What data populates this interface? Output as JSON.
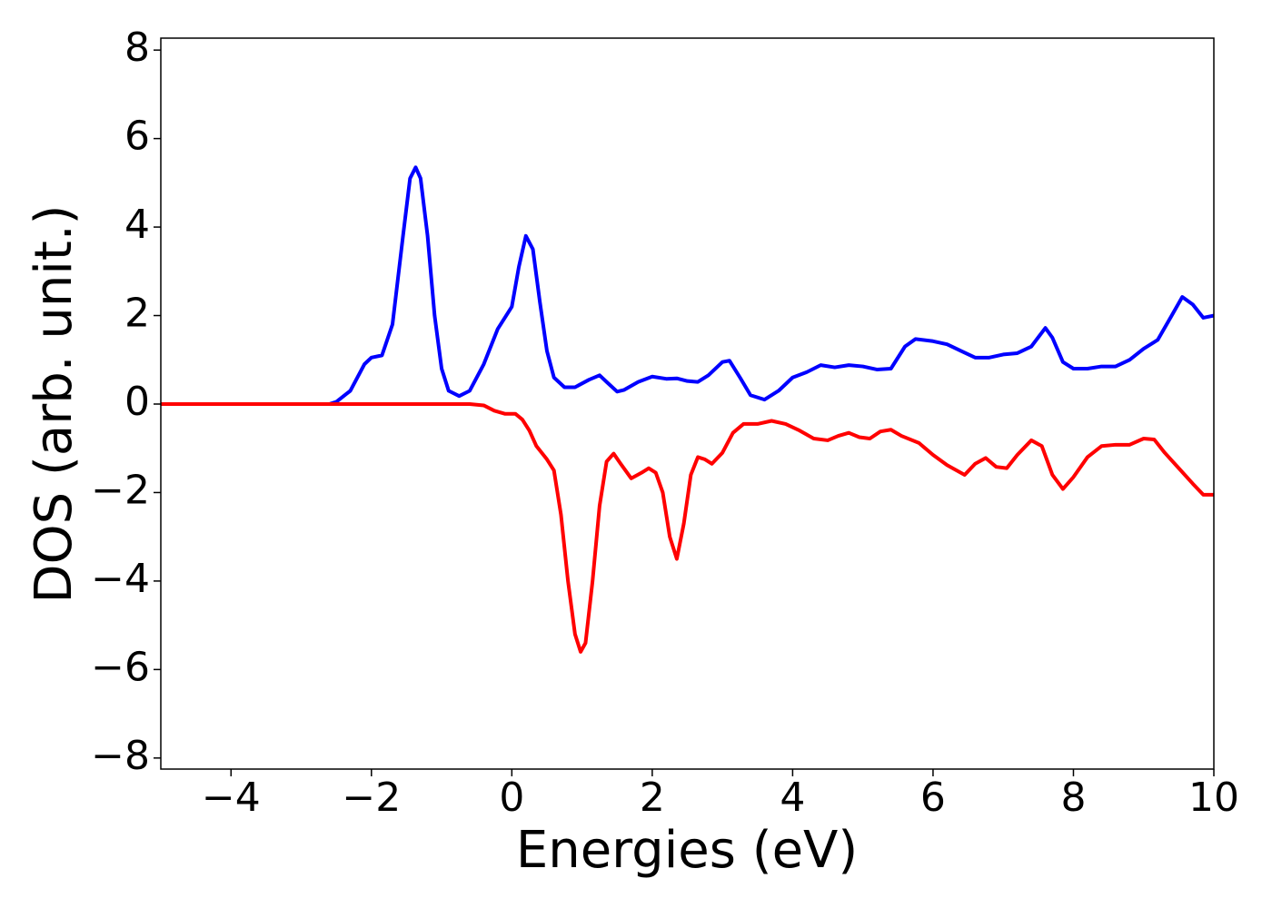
{
  "chart_data": {
    "type": "line",
    "xlabel": "Energies (eV)",
    "ylabel": "DOS (arb. unit.)",
    "xlim": [
      -5,
      10
    ],
    "ylim": [
      -8.25,
      8.27
    ],
    "xticks": [
      {
        "value": -4,
        "label": "−4"
      },
      {
        "value": -2,
        "label": "−2"
      },
      0,
      2,
      4,
      6,
      8,
      10
    ],
    "yticks": [
      {
        "value": -8,
        "label": "−8"
      },
      {
        "value": -6,
        "label": "−6"
      },
      {
        "value": -4,
        "label": "−4"
      },
      {
        "value": -2,
        "label": "−2"
      },
      0,
      2,
      4,
      6,
      8
    ],
    "series": [
      {
        "color": "#0000ff",
        "x": [
          -5,
          -2.6,
          -2.5,
          -2.3,
          -2.1,
          -2.0,
          -1.85,
          -1.7,
          -1.55,
          -1.45,
          -1.37,
          -1.3,
          -1.2,
          -1.1,
          -1.0,
          -0.9,
          -0.75,
          -0.6,
          -0.4,
          -0.2,
          0.0,
          0.1,
          0.2,
          0.3,
          0.4,
          0.5,
          0.6,
          0.75,
          0.9,
          1.1,
          1.25,
          1.35,
          1.5,
          1.6,
          1.8,
          2.0,
          2.2,
          2.35,
          2.5,
          2.65,
          2.8,
          3.0,
          3.1,
          3.25,
          3.4,
          3.6,
          3.8,
          4.0,
          4.2,
          4.4,
          4.6,
          4.8,
          5.0,
          5.2,
          5.4,
          5.6,
          5.75,
          6.0,
          6.2,
          6.4,
          6.6,
          6.8,
          7.0,
          7.2,
          7.4,
          7.6,
          7.7,
          7.85,
          8.0,
          8.2,
          8.4,
          8.6,
          8.8,
          9.0,
          9.2,
          9.4,
          9.55,
          9.7,
          9.85,
          10.0
        ],
        "values": [
          0,
          0,
          0.05,
          0.3,
          0.9,
          1.05,
          1.1,
          1.8,
          3.8,
          5.1,
          5.35,
          5.1,
          3.8,
          2.0,
          0.8,
          0.3,
          0.18,
          0.3,
          0.9,
          1.7,
          2.2,
          3.1,
          3.8,
          3.5,
          2.3,
          1.2,
          0.6,
          0.38,
          0.38,
          0.55,
          0.65,
          0.5,
          0.28,
          0.32,
          0.5,
          0.62,
          0.57,
          0.58,
          0.52,
          0.5,
          0.65,
          0.95,
          0.98,
          0.6,
          0.2,
          0.1,
          0.3,
          0.6,
          0.72,
          0.88,
          0.83,
          0.88,
          0.85,
          0.78,
          0.8,
          1.3,
          1.47,
          1.42,
          1.35,
          1.2,
          1.05,
          1.05,
          1.12,
          1.15,
          1.3,
          1.72,
          1.5,
          0.95,
          0.8,
          0.8,
          0.85,
          0.85,
          1.0,
          1.25,
          1.45,
          2.0,
          2.42,
          2.25,
          1.95,
          2.0
        ]
      },
      {
        "color": "#ff0000",
        "x": [
          -5,
          -0.6,
          -0.4,
          -0.25,
          -0.1,
          0.05,
          0.15,
          0.25,
          0.35,
          0.5,
          0.6,
          0.7,
          0.8,
          0.9,
          0.98,
          1.05,
          1.15,
          1.25,
          1.35,
          1.45,
          1.55,
          1.7,
          1.85,
          1.95,
          2.05,
          2.15,
          2.25,
          2.35,
          2.45,
          2.55,
          2.65,
          2.75,
          2.85,
          3.0,
          3.15,
          3.3,
          3.5,
          3.7,
          3.9,
          4.1,
          4.3,
          4.5,
          4.65,
          4.8,
          4.95,
          5.1,
          5.25,
          5.4,
          5.55,
          5.8,
          6.0,
          6.2,
          6.45,
          6.6,
          6.75,
          6.9,
          7.05,
          7.2,
          7.4,
          7.55,
          7.7,
          7.85,
          8.0,
          8.2,
          8.4,
          8.6,
          8.8,
          9.0,
          9.15,
          9.3,
          9.5,
          9.7,
          9.85,
          10.0
        ],
        "values": [
          0,
          0,
          -0.03,
          -0.15,
          -0.22,
          -0.22,
          -0.35,
          -0.6,
          -0.95,
          -1.25,
          -1.5,
          -2.5,
          -4.0,
          -5.2,
          -5.6,
          -5.4,
          -4.0,
          -2.3,
          -1.3,
          -1.12,
          -1.35,
          -1.68,
          -1.55,
          -1.45,
          -1.55,
          -2.0,
          -3.0,
          -3.5,
          -2.7,
          -1.6,
          -1.2,
          -1.25,
          -1.35,
          -1.1,
          -0.65,
          -0.45,
          -0.45,
          -0.38,
          -0.45,
          -0.6,
          -0.78,
          -0.82,
          -0.72,
          -0.65,
          -0.75,
          -0.78,
          -0.62,
          -0.58,
          -0.72,
          -0.88,
          -1.15,
          -1.38,
          -1.6,
          -1.35,
          -1.22,
          -1.42,
          -1.45,
          -1.15,
          -0.82,
          -0.95,
          -1.6,
          -1.92,
          -1.65,
          -1.2,
          -0.95,
          -0.92,
          -0.92,
          -0.78,
          -0.8,
          -1.1,
          -1.45,
          -1.8,
          -2.05,
          -2.05
        ]
      }
    ]
  }
}
